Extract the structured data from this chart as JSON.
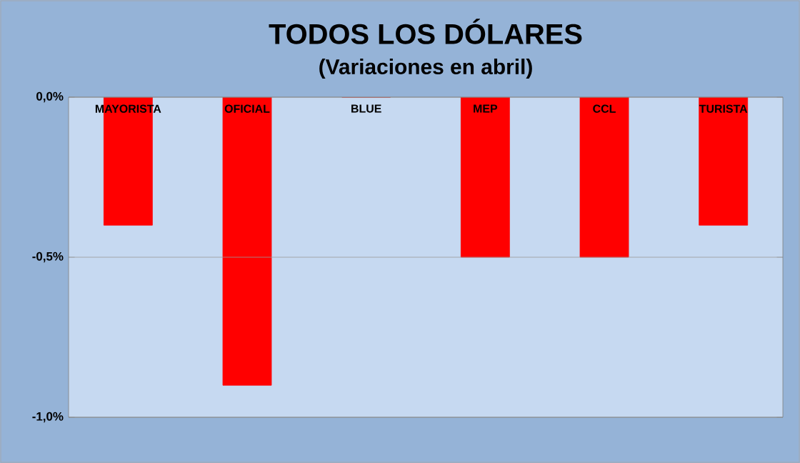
{
  "chart_data": {
    "type": "bar",
    "title": "TODOS LOS DÓLARES",
    "subtitle": "(Variaciones  en abril)",
    "categories": [
      "MAYORISTA",
      "OFICIAL",
      "BLUE",
      "MEP",
      "CCL",
      "TURISTA"
    ],
    "values": [
      -0.4,
      -0.9,
      0,
      -0.5,
      -0.5,
      -0.4
    ],
    "color": "#ff0000",
    "ylim": [
      -1.0,
      0.0
    ],
    "yticks": [
      {
        "value": -1.0,
        "label": "-1,0%"
      },
      {
        "value": -0.5,
        "label": "-0,5%"
      },
      {
        "value": 0.0,
        "label": "0,0%"
      }
    ],
    "grid": "y"
  }
}
